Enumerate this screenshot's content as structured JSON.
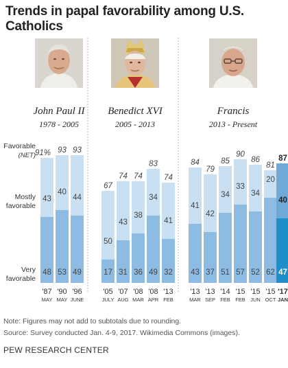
{
  "title": "Trends in papal favorability among U.S. Catholics",
  "popes": [
    {
      "name": "John Paul II",
      "years": "1978 - 2005"
    },
    {
      "name": "Benedict XVI",
      "years": "2005 - 2013"
    },
    {
      "name": "Francis",
      "years": "2013 - Present"
    }
  ],
  "row_labels": {
    "favorable_line1": "Favorable",
    "favorable_line2": "(NET)",
    "mostly_line1": "Mostly",
    "mostly_line2": "favorable",
    "very_line1": "Very",
    "very_line2": "favorable"
  },
  "colors": {
    "mostly": "#c9dff2",
    "very": "#8dbbe2",
    "mostly_highlight": "#6fa9d8",
    "very_highlight": "#1f8ec9",
    "divider": "#b5b5b5"
  },
  "chart_data": {
    "type": "bar",
    "stacked": true,
    "ylim": [
      0,
      100
    ],
    "series": [
      {
        "name": "Very favorable",
        "values": [
          48,
          53,
          49,
          17,
          31,
          36,
          49,
          32,
          43,
          37,
          51,
          57,
          52,
          62,
          47
        ]
      },
      {
        "name": "Mostly favorable",
        "values": [
          43,
          40,
          44,
          50,
          43,
          38,
          34,
          41,
          41,
          42,
          34,
          33,
          34,
          20,
          40
        ]
      }
    ],
    "totals": [
      "91%",
      "93",
      "93",
      "67",
      "74",
      "74",
      "83",
      "74",
      "84",
      "79",
      "85",
      "90",
      "86",
      "81",
      "87"
    ],
    "year_labels": [
      "'87",
      "'90",
      "'96",
      "'05",
      "'07",
      "'08",
      "'08",
      "'13",
      "'13",
      "'13",
      "'14",
      "'15",
      "'15",
      "'15",
      "'17"
    ],
    "month_labels": [
      "MAY",
      "MAY",
      "JUNE",
      "JULY",
      "AUG",
      "MAR",
      "APR",
      "FEB",
      "MAR",
      "SEP",
      "FEB",
      "FEB",
      "JUN",
      "OCT",
      "JAN"
    ],
    "pope_index": [
      0,
      0,
      0,
      1,
      1,
      1,
      1,
      1,
      2,
      2,
      2,
      2,
      2,
      2,
      2
    ],
    "highlight_index": 14
  },
  "footer": {
    "note": "Note: Figures may not add to subtotals due to rounding.",
    "source": "Source: Survey conducted Jan. 4-9, 2017. Wikimedia Commons (images).",
    "org": "PEW RESEARCH CENTER"
  }
}
